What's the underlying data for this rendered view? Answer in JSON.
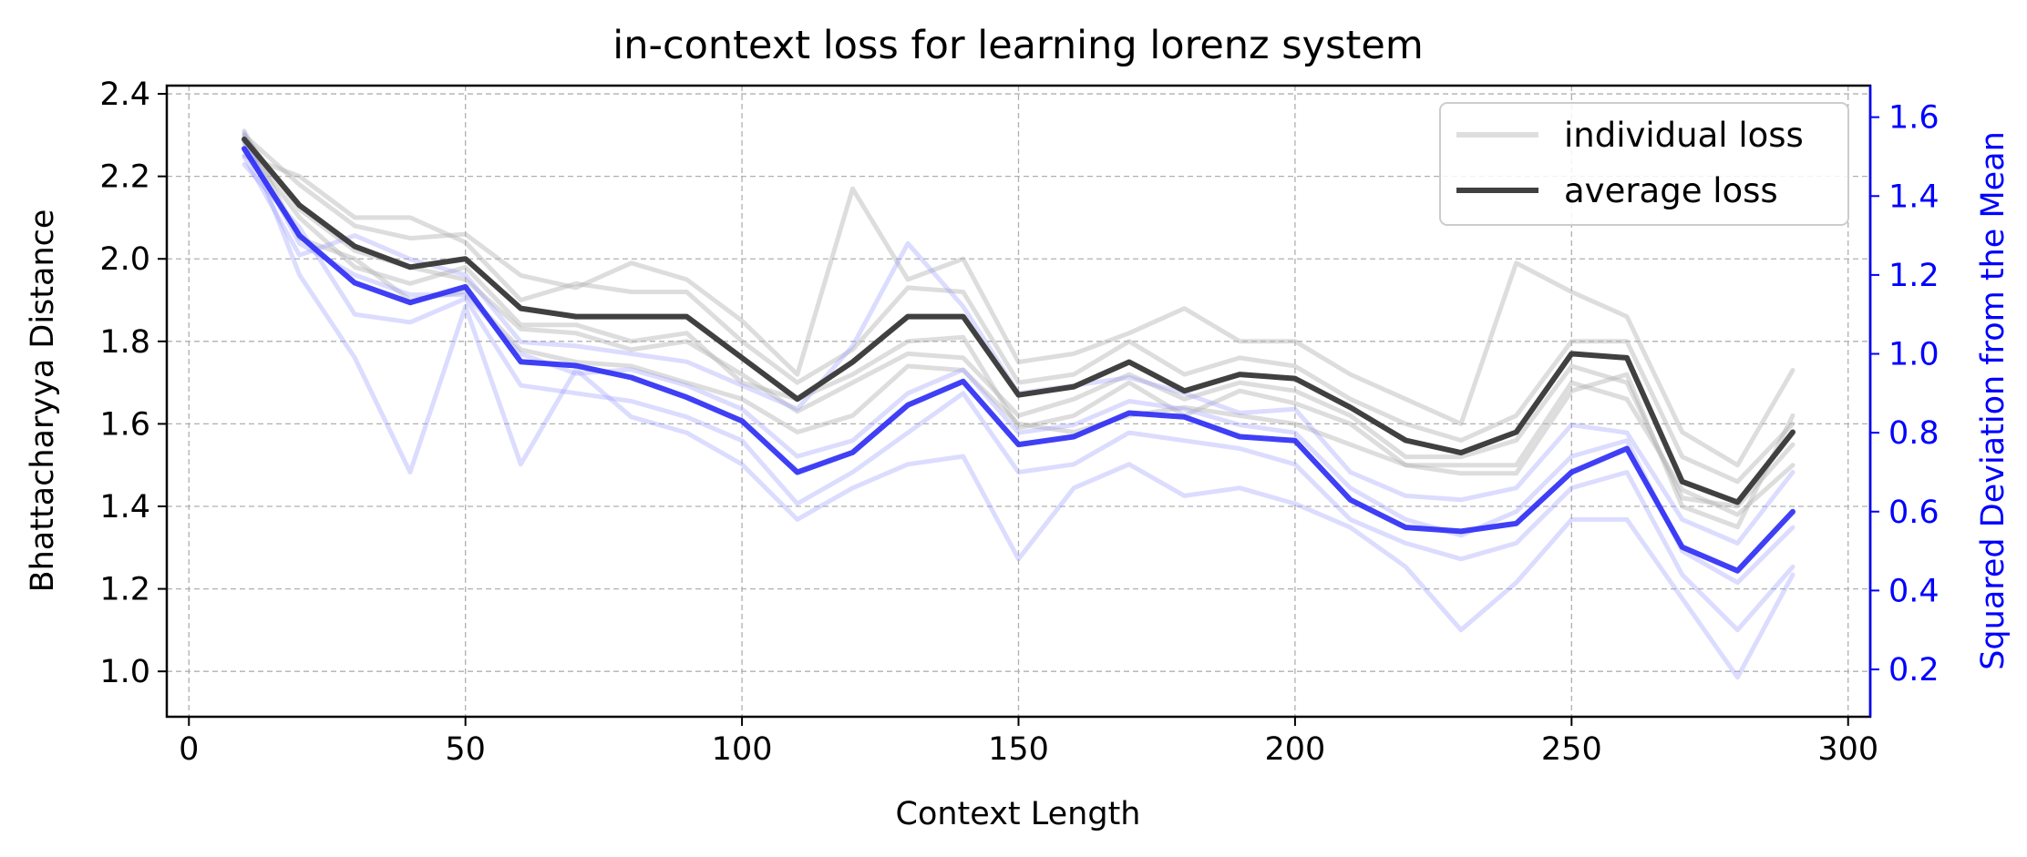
{
  "chart_data": {
    "type": "line",
    "title": "in-context loss for learning lorenz system",
    "xlabel": "Context Length",
    "ylabel": "Bhattacharyya Distance",
    "ylabel_right": "Squared Deviation from the Mean",
    "xlim": [
      -4,
      304
    ],
    "ylim": [
      0.89,
      2.42
    ],
    "ylim_right": [
      0.08,
      1.68
    ],
    "xticks": [
      0,
      50,
      100,
      150,
      200,
      250,
      300
    ],
    "xtick_labels": [
      "0",
      "50",
      "100",
      "150",
      "200",
      "250",
      "300"
    ],
    "yticks": [
      1.0,
      1.2,
      1.4,
      1.6,
      1.8,
      2.0,
      2.2,
      2.4
    ],
    "ytick_labels": [
      "1.0",
      "1.2",
      "1.4",
      "1.6",
      "1.8",
      "2.0",
      "2.2",
      "2.4"
    ],
    "yticks_right": [
      0.2,
      0.4,
      0.6,
      0.8,
      1.0,
      1.2,
      1.4,
      1.6
    ],
    "ytick_labels_right": [
      "0.2",
      "0.4",
      "0.6",
      "0.8",
      "1.0",
      "1.2",
      "1.4",
      "1.6"
    ],
    "grid": true,
    "legend_position": "top-right",
    "legend": [
      {
        "label": "individual loss",
        "color": "#c8c8c8"
      },
      {
        "label": "average loss",
        "color": "#404040"
      }
    ],
    "colors": {
      "average": "#404040",
      "individual": "#b4b4b4",
      "deviation": "#2a2af5",
      "deviation_individual": "#9a9aff",
      "right_axis": "#0000ff",
      "grid": "#b0b0b0"
    },
    "x": [
      10,
      20,
      30,
      40,
      50,
      60,
      70,
      80,
      90,
      100,
      110,
      120,
      130,
      140,
      150,
      160,
      170,
      180,
      190,
      200,
      210,
      220,
      230,
      240,
      250,
      260,
      270,
      280,
      290
    ],
    "series": [
      {
        "name": "average loss",
        "axis": "left",
        "values": [
          2.29,
          2.13,
          2.03,
          1.98,
          2.0,
          1.88,
          1.86,
          1.86,
          1.86,
          1.76,
          1.66,
          1.75,
          1.86,
          1.86,
          1.67,
          1.69,
          1.75,
          1.68,
          1.72,
          1.71,
          1.64,
          1.56,
          1.53,
          1.58,
          1.77,
          1.76,
          1.46,
          1.41,
          1.58
        ]
      },
      {
        "axis": "left",
        "values": [
          2.3,
          2.18,
          2.08,
          2.05,
          2.06,
          1.96,
          1.93,
          1.99,
          1.95,
          1.85,
          1.72,
          2.17,
          1.95,
          2.0,
          1.75,
          1.77,
          1.82,
          1.88,
          1.8,
          1.8,
          1.72,
          1.66,
          1.6,
          1.99,
          1.92,
          1.86,
          1.58,
          1.5,
          1.73
        ]
      },
      {
        "axis": "left",
        "values": [
          2.28,
          2.1,
          1.98,
          1.94,
          1.98,
          1.84,
          1.84,
          1.8,
          1.82,
          1.7,
          1.66,
          1.72,
          1.8,
          1.81,
          1.59,
          1.62,
          1.7,
          1.62,
          1.68,
          1.65,
          1.6,
          1.5,
          1.48,
          1.48,
          1.68,
          1.72,
          1.4,
          1.35,
          1.62
        ]
      },
      {
        "axis": "left",
        "values": [
          2.31,
          2.05,
          2.0,
          1.9,
          1.92,
          1.78,
          1.75,
          1.74,
          1.7,
          1.66,
          1.58,
          1.62,
          1.74,
          1.73,
          1.6,
          1.58,
          1.62,
          1.64,
          1.62,
          1.6,
          1.55,
          1.5,
          1.5,
          1.5,
          1.7,
          1.66,
          1.44,
          1.38,
          1.5
        ]
      },
      {
        "axis": "left",
        "values": [
          2.25,
          2.2,
          2.1,
          2.1,
          2.04,
          1.9,
          1.94,
          1.92,
          1.92,
          1.8,
          1.7,
          1.78,
          1.93,
          1.92,
          1.7,
          1.72,
          1.8,
          1.72,
          1.76,
          1.74,
          1.66,
          1.6,
          1.56,
          1.62,
          1.8,
          1.8,
          1.52,
          1.46,
          1.6
        ]
      },
      {
        "axis": "left",
        "values": [
          2.3,
          2.12,
          2.02,
          1.98,
          1.95,
          1.83,
          1.82,
          1.78,
          1.8,
          1.72,
          1.63,
          1.7,
          1.77,
          1.76,
          1.62,
          1.66,
          1.72,
          1.66,
          1.7,
          1.68,
          1.62,
          1.52,
          1.52,
          1.56,
          1.74,
          1.7,
          1.42,
          1.4,
          1.55
        ]
      },
      {
        "name": "Squared Deviation from the Mean",
        "axis": "right",
        "values": [
          1.52,
          1.3,
          1.18,
          1.13,
          1.17,
          0.98,
          0.97,
          0.94,
          0.89,
          0.83,
          0.7,
          0.75,
          0.87,
          0.93,
          0.77,
          0.79,
          0.85,
          0.84,
          0.79,
          0.78,
          0.63,
          0.56,
          0.55,
          0.57,
          0.7,
          0.76,
          0.51,
          0.45,
          0.6
        ]
      },
      {
        "axis": "right",
        "values": [
          1.5,
          1.25,
          1.3,
          1.24,
          1.2,
          1.03,
          1.02,
          1.0,
          0.98,
          0.92,
          0.86,
          1.02,
          1.28,
          1.12,
          0.9,
          0.92,
          0.94,
          0.9,
          0.85,
          0.86,
          0.7,
          0.64,
          0.63,
          0.66,
          0.82,
          0.8,
          0.58,
          0.52,
          0.7
        ]
      },
      {
        "axis": "right",
        "values": [
          1.56,
          1.2,
          0.99,
          0.7,
          1.12,
          0.72,
          0.96,
          0.84,
          0.8,
          0.72,
          0.58,
          0.66,
          0.72,
          0.74,
          0.48,
          0.66,
          0.72,
          0.64,
          0.66,
          0.62,
          0.56,
          0.46,
          0.3,
          0.42,
          0.58,
          0.58,
          0.38,
          0.18,
          0.44
        ]
      },
      {
        "axis": "right",
        "values": [
          1.48,
          1.32,
          1.1,
          1.08,
          1.14,
          0.92,
          0.9,
          0.88,
          0.84,
          0.78,
          0.62,
          0.7,
          0.8,
          0.9,
          0.7,
          0.72,
          0.8,
          0.78,
          0.76,
          0.72,
          0.58,
          0.52,
          0.48,
          0.52,
          0.66,
          0.7,
          0.44,
          0.3,
          0.46
        ]
      },
      {
        "axis": "right",
        "values": [
          1.54,
          1.28,
          1.2,
          1.15,
          1.15,
          1.0,
          0.95,
          0.96,
          0.92,
          0.86,
          0.74,
          0.78,
          0.9,
          0.96,
          0.8,
          0.82,
          0.88,
          0.86,
          0.82,
          0.8,
          0.66,
          0.58,
          0.54,
          0.6,
          0.74,
          0.78,
          0.5,
          0.42,
          0.56
        ]
      }
    ]
  }
}
